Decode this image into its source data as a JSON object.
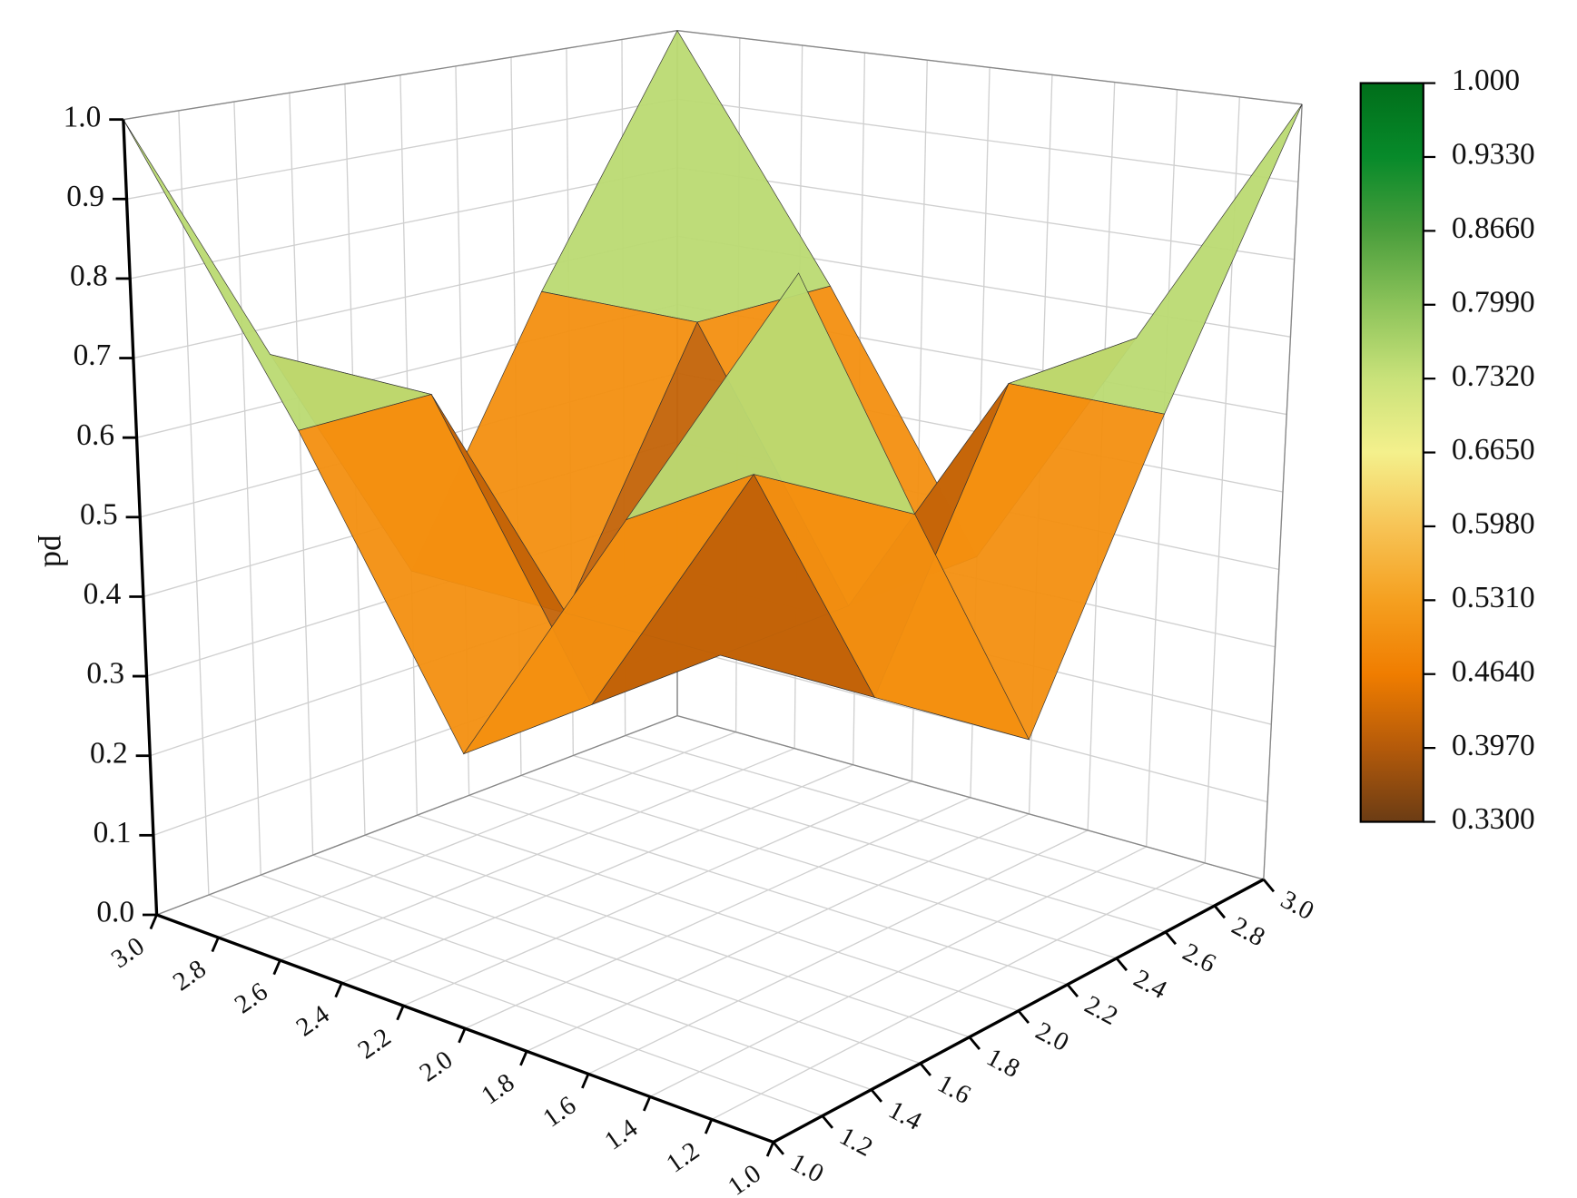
{
  "chart_data": {
    "type": "surface3d",
    "zlabel": "pd",
    "x": [
      1,
      1.5,
      2,
      2.5,
      3
    ],
    "y": [
      1,
      1.5,
      2,
      2.5,
      3
    ],
    "z": [
      [
        1,
        0.665,
        0.33,
        0.665,
        1
      ],
      [
        0.665,
        0.665,
        0.33,
        0.665,
        0.665
      ],
      [
        0.33,
        0.33,
        0.33,
        0.33,
        0.33
      ],
      [
        0.665,
        0.665,
        0.33,
        0.665,
        0.665
      ],
      [
        1,
        0.665,
        0.33,
        0.665,
        1
      ]
    ],
    "xlim": [
      1,
      3
    ],
    "ylim": [
      1,
      3
    ],
    "zlim": [
      0,
      1
    ],
    "xticks": [
      {
        "value": 1,
        "label": "1.0"
      },
      1.2,
      1.4,
      1.6,
      1.8,
      {
        "value": 2,
        "label": "2.0"
      },
      2.2,
      2.4,
      2.6,
      2.8,
      {
        "value": 3,
        "label": "3.0"
      }
    ],
    "yticks": [
      {
        "value": 1,
        "label": "1.0"
      },
      1.2,
      1.4,
      1.6,
      1.8,
      {
        "value": 2,
        "label": "2.0"
      },
      2.2,
      2.4,
      2.6,
      2.8,
      {
        "value": 3,
        "label": "3.0"
      }
    ],
    "zticks": [
      {
        "value": 0,
        "label": "0.0"
      },
      0.1,
      0.2,
      0.3,
      0.4,
      0.5,
      0.6,
      0.7,
      0.8,
      0.9,
      {
        "value": 1,
        "label": "1.0"
      }
    ],
    "grid": true,
    "colorbar": {
      "ticks": [
        {
          "value": 1,
          "label": "1.000"
        },
        {
          "value": 0.933,
          "label": "0.9330"
        },
        {
          "value": 0.866,
          "label": "0.8660"
        },
        {
          "value": 0.799,
          "label": "0.7990"
        },
        {
          "value": 0.732,
          "label": "0.7320"
        },
        {
          "value": 0.665,
          "label": "0.6650"
        },
        {
          "value": 0.598,
          "label": "0.5980"
        },
        {
          "value": 0.531,
          "label": "0.5310"
        },
        {
          "value": 0.464,
          "label": "0.4640"
        },
        {
          "value": 0.397,
          "label": "0.3970"
        },
        {
          "value": 0.33,
          "label": "0.3300"
        }
      ],
      "colors": [
        "#006e1a",
        "#078a2a",
        "#4a9e3c",
        "#8cc35a",
        "#c9e27a",
        "#f4f08c",
        "#f7c456",
        "#f5a020",
        "#f07d00",
        "#b45a0a",
        "#6b3c14"
      ]
    }
  }
}
